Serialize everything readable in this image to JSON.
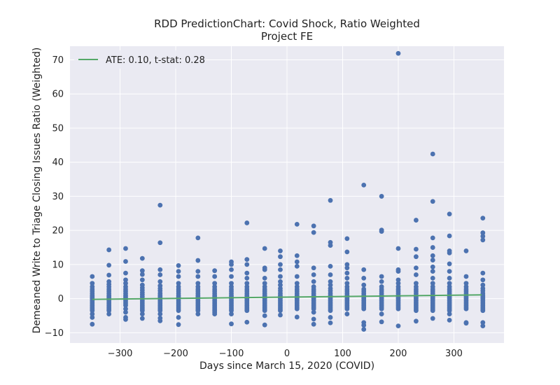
{
  "chart_data": {
    "type": "scatter",
    "title": "RDD PredictionChart: Covid Shock, Ratio Weighted",
    "subtitle": "Project FE",
    "xlabel": "Days since March 15, 2020 (COVID)",
    "ylabel": "Demeaned Write to Triage Closing Issues Ratio (Weighted)",
    "xlim": [
      -390,
      390
    ],
    "ylim": [
      -13,
      74
    ],
    "xticks": [
      -300,
      -200,
      -100,
      0,
      100,
      200,
      300
    ],
    "xtick_labels": [
      "−300",
      "−200",
      "−100",
      "0",
      "100",
      "200",
      "300"
    ],
    "yticks": [
      -10,
      0,
      10,
      20,
      30,
      40,
      50,
      60,
      70
    ],
    "ytick_labels": [
      "−10",
      "0",
      "10",
      "20",
      "30",
      "40",
      "50",
      "60",
      "70"
    ],
    "grid": true,
    "legend_position": "top-left",
    "colors": {
      "points": "#4c72b0",
      "fit": "#55a868",
      "background": "#eaeaf2",
      "grid": "#ffffff"
    },
    "series": [
      {
        "name": "ATE: 0.10, t-stat: 0.28",
        "kind": "line",
        "x": [
          -350,
          350
        ],
        "y": [
          -0.2,
          1.1
        ]
      },
      {
        "kind": "scatter",
        "columns": [
          {
            "x": -350,
            "y": [
              6.5,
              4.5,
              3.5,
              2.8,
              2.2,
              1.6,
              1.0,
              0.5,
              0.0,
              -0.5,
              -1.0,
              -1.5,
              -2.0,
              -2.5,
              -3.0,
              -3.5,
              -4.5,
              -5.5,
              -7.5
            ]
          },
          {
            "x": -320,
            "y": [
              14.3,
              9.8,
              6.9,
              5.0,
              4.2,
              3.5,
              2.8,
              2.2,
              1.6,
              1.0,
              0.5,
              0.0,
              -0.5,
              -1.0,
              -1.5,
              -2.0,
              -2.5,
              -3.0,
              -3.5,
              -4.5
            ]
          },
          {
            "x": -290,
            "y": [
              14.7,
              10.9,
              7.5,
              5.5,
              4.5,
              3.5,
              2.8,
              2.2,
              1.6,
              1.0,
              0.5,
              0.0,
              -0.5,
              -1.0,
              -1.5,
              -2.0,
              -3.0,
              -4.0,
              -5.5,
              -6.1
            ]
          },
          {
            "x": -260,
            "y": [
              11.8,
              8.2,
              7.1,
              5.5,
              4.0,
              3.2,
              2.5,
              1.8,
              1.2,
              0.6,
              0.0,
              -0.5,
              -1.0,
              -1.5,
              -2.0,
              -2.5,
              -3.0,
              -3.5,
              -4.5,
              -5.8
            ]
          },
          {
            "x": -228,
            "y": [
              27.4,
              16.4,
              8.5,
              7.0,
              5.0,
              3.8,
              3.0,
              2.3,
              1.6,
              1.0,
              0.5,
              0.0,
              -0.5,
              -1.0,
              -1.5,
              -2.0,
              -2.5,
              -3.0,
              -3.5,
              -4.5,
              -5.7,
              -6.5
            ]
          },
          {
            "x": -195,
            "y": [
              9.7,
              8.0,
              6.5,
              4.5,
              3.5,
              2.8,
              2.2,
              1.6,
              1.0,
              0.5,
              0.0,
              -0.5,
              -1.0,
              -1.5,
              -2.0,
              -2.5,
              -3.0,
              -3.5,
              -5.5,
              -7.6
            ]
          },
          {
            "x": -160,
            "y": [
              17.8,
              11.2,
              8.0,
              6.5,
              4.5,
              3.5,
              2.8,
              2.2,
              1.6,
              1.0,
              0.5,
              0.0,
              -0.5,
              -1.0,
              -1.5,
              -2.0,
              -2.5,
              -3.0,
              -3.5,
              -4.5
            ]
          },
          {
            "x": -130,
            "y": [
              8.2,
              6.5,
              4.5,
              3.5,
              2.8,
              2.2,
              1.6,
              1.0,
              0.5,
              0.0,
              -0.5,
              -1.0,
              -1.5,
              -2.0,
              -2.5,
              -3.0,
              -3.5,
              -4.0,
              -4.5
            ]
          },
          {
            "x": -100,
            "y": [
              10.8,
              10.0,
              8.5,
              6.5,
              4.5,
              3.5,
              2.8,
              2.2,
              1.6,
              1.0,
              0.5,
              0.0,
              -0.5,
              -1.0,
              -1.5,
              -2.0,
              -2.5,
              -3.0,
              -3.5,
              -4.5,
              -7.4
            ]
          },
          {
            "x": -72,
            "y": [
              22.2,
              11.5,
              10.0,
              7.5,
              6.0,
              4.5,
              3.5,
              2.8,
              2.2,
              1.6,
              1.0,
              0.5,
              0.0,
              -0.5,
              -1.0,
              -1.5,
              -2.0,
              -2.5,
              -3.0,
              -3.5,
              -6.9
            ]
          },
          {
            "x": -40,
            "y": [
              14.7,
              9.0,
              8.5,
              6.0,
              4.5,
              3.5,
              2.8,
              2.2,
              1.6,
              1.0,
              0.5,
              0.0,
              -0.5,
              -1.0,
              -1.5,
              -2.0,
              -2.5,
              -3.0,
              -3.5,
              -5.0,
              -7.7
            ]
          },
          {
            "x": -12,
            "y": [
              14.0,
              12.3,
              10.0,
              8.5,
              6.5,
              5.0,
              4.0,
              3.0,
              2.3,
              1.6,
              1.0,
              0.5,
              0.0,
              -0.5,
              -1.0,
              -1.5,
              -2.0,
              -2.5,
              -3.0,
              -3.5,
              -4.8
            ]
          },
          {
            "x": 18,
            "y": [
              21.8,
              12.6,
              10.8,
              9.5,
              6.5,
              4.5,
              3.5,
              2.8,
              2.2,
              1.6,
              1.0,
              0.5,
              0.0,
              -0.5,
              -1.0,
              -1.5,
              -2.0,
              -2.5,
              -3.0,
              -5.4
            ]
          },
          {
            "x": 48,
            "y": [
              21.3,
              19.4,
              9.0,
              7.0,
              5.0,
              3.5,
              2.8,
              2.2,
              1.6,
              1.0,
              0.5,
              0.0,
              -0.5,
              -1.0,
              -1.5,
              -2.0,
              -2.5,
              -3.0,
              -4.0,
              -6.0,
              -7.5
            ]
          },
          {
            "x": 78,
            "y": [
              28.8,
              16.5,
              15.6,
              9.5,
              7.0,
              5.0,
              4.0,
              3.0,
              2.3,
              1.6,
              1.0,
              0.5,
              0.0,
              -0.5,
              -1.0,
              -1.5,
              -2.0,
              -2.5,
              -3.0,
              -3.5,
              -5.5,
              -7.1
            ]
          },
          {
            "x": 108,
            "y": [
              17.6,
              13.7,
              10.0,
              9.0,
              7.5,
              6.0,
              4.5,
              3.5,
              2.8,
              2.2,
              1.6,
              1.0,
              0.5,
              0.0,
              -0.5,
              -1.0,
              -1.5,
              -2.0,
              -2.5,
              -3.0,
              -4.5
            ]
          },
          {
            "x": 138,
            "y": [
              33.3,
              8.5,
              6.0,
              4.0,
              2.8,
              2.2,
              1.6,
              1.0,
              0.5,
              0.0,
              -0.5,
              -1.0,
              -1.5,
              -2.0,
              -2.5,
              -3.0,
              -7.0,
              -7.8,
              -9.0
            ]
          },
          {
            "x": 170,
            "y": [
              30.0,
              20.1,
              19.7,
              6.5,
              5.0,
              3.5,
              2.8,
              2.2,
              1.6,
              1.0,
              0.5,
              0.0,
              -0.5,
              -1.0,
              -1.5,
              -2.0,
              -2.5,
              -3.0,
              -4.5,
              -6.8
            ]
          },
          {
            "x": 200,
            "y": [
              71.9,
              14.7,
              8.5,
              8.0,
              5.5,
              4.5,
              3.5,
              2.8,
              2.2,
              1.6,
              1.0,
              0.5,
              0.0,
              -0.5,
              -1.0,
              -1.5,
              -2.0,
              -2.5,
              -3.0,
              -8.0
            ]
          },
          {
            "x": 232,
            "y": [
              23.0,
              14.5,
              12.3,
              9.0,
              7.0,
              4.5,
              3.5,
              2.8,
              2.2,
              1.6,
              1.0,
              0.5,
              0.0,
              -0.5,
              -1.0,
              -1.5,
              -2.0,
              -2.5,
              -3.0,
              -3.5,
              -6.6
            ]
          },
          {
            "x": 262,
            "y": [
              42.4,
              28.5,
              17.8,
              15.0,
              12.6,
              11.3,
              9.3,
              8.0,
              6.0,
              4.5,
              3.5,
              2.8,
              2.2,
              1.6,
              1.0,
              0.5,
              0.0,
              -0.5,
              -1.0,
              -1.5,
              -2.0,
              -2.5,
              -3.0,
              -3.5,
              -5.8
            ]
          },
          {
            "x": 292,
            "y": [
              24.8,
              18.4,
              14.0,
              13.4,
              10.2,
              8.0,
              6.0,
              4.5,
              3.5,
              2.8,
              2.2,
              1.6,
              1.0,
              0.5,
              0.0,
              -0.5,
              -1.0,
              -1.5,
              -2.0,
              -2.5,
              -3.0,
              -3.5,
              -4.5,
              -6.3
            ]
          },
          {
            "x": 322,
            "y": [
              14.0,
              6.5,
              4.5,
              3.5,
              2.8,
              2.2,
              1.6,
              1.0,
              0.5,
              0.0,
              -0.5,
              -1.0,
              -1.5,
              -2.0,
              -2.5,
              -3.0,
              -7.0,
              -7.2
            ]
          },
          {
            "x": 352,
            "y": [
              23.6,
              19.3,
              18.3,
              17.2,
              7.5,
              5.5,
              4.0,
              3.0,
              2.3,
              1.6,
              1.0,
              0.5,
              0.0,
              -0.5,
              -1.0,
              -1.5,
              -2.0,
              -2.5,
              -3.0,
              -3.5,
              -7.0,
              -8.0
            ]
          }
        ]
      }
    ]
  }
}
